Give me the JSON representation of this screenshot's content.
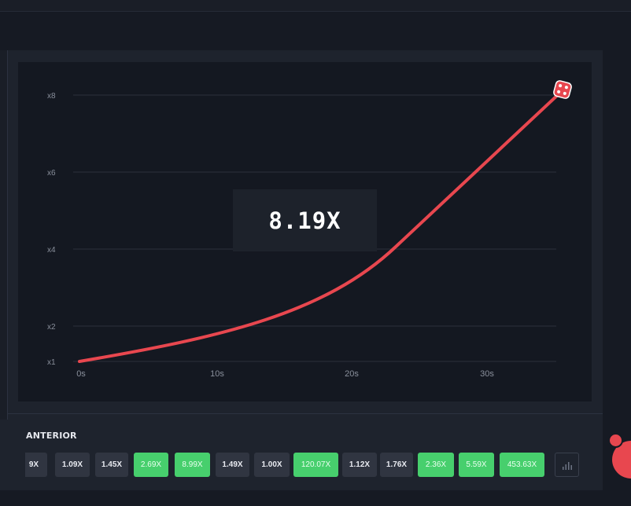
{
  "game": {
    "current_multiplier": "8.19X"
  },
  "chart": {
    "y_ticks": [
      {
        "label": "x8",
        "value": 8
      },
      {
        "label": "x6",
        "value": 6
      },
      {
        "label": "x4",
        "value": 4
      },
      {
        "label": "x2",
        "value": 2
      },
      {
        "label": "x1",
        "value": 1
      }
    ],
    "x_ticks": [
      {
        "label": "0s",
        "value": 0
      },
      {
        "label": "10s",
        "value": 10
      },
      {
        "label": "20s",
        "value": 20
      },
      {
        "label": "30s",
        "value": 30
      }
    ],
    "curve_color": "#e8474f",
    "rocket_icon": "dice-icon"
  },
  "history": {
    "title": "ANTERIOR",
    "items": [
      {
        "label": "9X",
        "kind": "grey"
      },
      {
        "label": "1.09X",
        "kind": "grey"
      },
      {
        "label": "1.45X",
        "kind": "grey"
      },
      {
        "label": "2.69X",
        "kind": "green"
      },
      {
        "label": "8.99X",
        "kind": "green"
      },
      {
        "label": "1.49X",
        "kind": "grey"
      },
      {
        "label": "1.00X",
        "kind": "grey"
      },
      {
        "label": "120.07X",
        "kind": "green"
      },
      {
        "label": "1.12X",
        "kind": "grey"
      },
      {
        "label": "1.76X",
        "kind": "grey"
      },
      {
        "label": "2.36X",
        "kind": "green"
      },
      {
        "label": "5.59X",
        "kind": "green"
      },
      {
        "label": "453.63X",
        "kind": "green"
      }
    ],
    "stats_icon": "bar-chart-icon"
  },
  "colors": {
    "green": "#47cf6d",
    "grey": "#303541",
    "accent": "#e8474f"
  }
}
